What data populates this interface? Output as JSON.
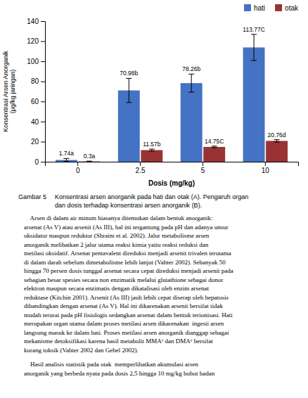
{
  "chart_data": {
    "type": "bar",
    "categories": [
      "0",
      "2.5",
      "5",
      "10"
    ],
    "series": [
      {
        "name": "hati",
        "color": "#4472C4",
        "values": [
          1.74,
          70.98,
          78.26,
          113.77
        ],
        "errors": [
          1.5,
          12,
          9,
          13
        ],
        "value_labels": [
          "1.74a",
          "70.98b",
          "78.26b",
          "113.77C"
        ]
      },
      {
        "name": "otak",
        "color": "#993333",
        "values": [
          0.3,
          11.57,
          14.75,
          20.76
        ],
        "errors": [
          0.3,
          1.0,
          0.8,
          1.2
        ],
        "value_labels": [
          "0.3a",
          "11.57b",
          "14.75C",
          "20.76d"
        ]
      }
    ],
    "xlabel": "Dosis (mg/kg)",
    "ylabel": "Konsentrasi Arsen Anorganik\n(μg/kg jaringan)",
    "ylim": [
      0,
      140
    ],
    "yticks": [
      0,
      20,
      40,
      60,
      80,
      100,
      120,
      140
    ],
    "grid": false,
    "legend": "upper right",
    "data_labels": true
  },
  "caption": {
    "label": "Gambar 5",
    "lines": [
      "Konsentrasi arsen anorganik pada hati dan otak (A). Pengaruh organ",
      "dan dosis terhadap konsentrasi arsen anorganik (B)."
    ]
  },
  "body_text": [
    [
      "    Arsen di dalam air minum biasanya ditemukan dalam bentuk anorganik:",
      "arsenat (As V) atau arsenit (As III), hal ini tergantung pada pH dan adanya unsur",
      "oksidator maupun reduktor (Shraim et al. 2002). Jalur metabolisme arsen",
      "anorganik melibatkan 2 jalur utama reaksi kimia yaitu reaksi reduksi dan",
      "metilasi oksidatif. Arsenat pentavalent direduksi menjadi arsenit trivalen terutama",
      "di dalam darah sebelum dimetabolisme lebih lanjut (Vahter 2002). Sebanyak 50",
      "hingga 70 persen dosis tunggal arsenat secara cepat direduksi menjadi arsenit pada",
      "sebagian besar spesies secara non enzimatik melalui glutathione sebagai donor",
      "elektron maupun secara enzimatis dengan dikatalisasi oleh enzim arsenat",
      "reduktase (Kitchin 2001). Arsenit (As III) jauh lebih cepat diserap oleh hepatosis",
      "dibandingkan dengan arsenat (As V). Hal ini dikarenakan arsenit bersifat tidak",
      "mudah terurai pada pH fisiologis sedangkan arsenat dalam bentuk terionisasi. Hati",
      "merupakan organ utama dalam proses metilasi arsen dikarenakan  ingesti arsen",
      "langsung masuk ke dalam hati. Proses metilasi arsen anorganik dianggap sebagai",
      "mekanisme detoksifikasi karena hasil metabolit MMAᵛ dan DMAᵛ bersifat",
      "kurang toksik (Vahter 2002 dan Gebel 2002)."
    ],
    [
      "    Hasil analisis statistik pada otak  memperlihatkan akumulasi arsen",
      "anorganik yang berbeda nyata pada dosis 2,5 hingga 10 mg/kg bobot badan"
    ]
  ]
}
